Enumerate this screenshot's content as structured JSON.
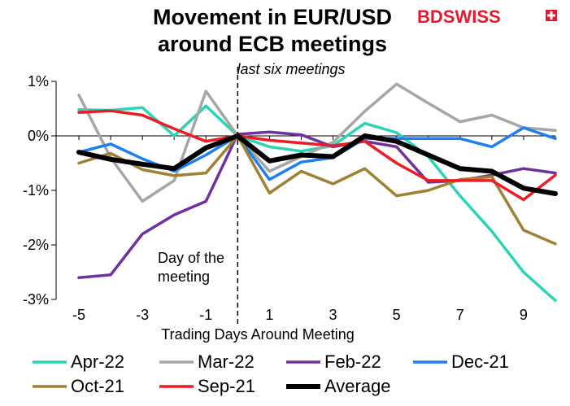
{
  "chart_data": {
    "type": "line",
    "title_line1": "Movement in EUR/USD",
    "title_line2": "around ECB meetings",
    "subtitle": "last six meetings",
    "xlabel": "Trading Days Around Meeting",
    "ylabel": "",
    "annotation_line1": "Day of the",
    "annotation_line2": "meeting",
    "annotation_x": 0,
    "x": [
      -5,
      -4,
      -3,
      -2,
      -1,
      0,
      1,
      2,
      3,
      4,
      5,
      6,
      7,
      8,
      9,
      10
    ],
    "xticks": [
      -5,
      -3,
      -1,
      1,
      3,
      5,
      7,
      9
    ],
    "xlim": [
      -5,
      10
    ],
    "ylim": [
      -3,
      1
    ],
    "yticks": [
      1,
      0,
      -1,
      -2,
      -3
    ],
    "ytick_labels": [
      "1%",
      "0%",
      "-1%",
      "-2%",
      "-3%"
    ],
    "grid": false,
    "legend_position": "bottom",
    "series": [
      {
        "name": "Apr-22",
        "color": "#2ad4b4",
        "width": 3.5,
        "values": [
          0.48,
          0.47,
          0.52,
          0.0,
          0.55,
          0.0,
          -0.2,
          -0.28,
          -0.18,
          0.23,
          0.06,
          -0.38,
          -1.1,
          -1.75,
          -2.5,
          -3.02
        ]
      },
      {
        "name": "Mar-22",
        "color": "#a6a6a6",
        "width": 3.5,
        "values": [
          0.75,
          -0.4,
          -1.2,
          -0.82,
          0.82,
          0.0,
          -0.65,
          -0.38,
          -0.12,
          0.45,
          0.95,
          0.6,
          0.26,
          0.38,
          0.15,
          0.1
        ]
      },
      {
        "name": "Feb-22",
        "color": "#7030a0",
        "width": 3.5,
        "values": [
          -2.6,
          -2.55,
          -1.8,
          -1.45,
          -1.2,
          0.03,
          0.07,
          0.02,
          -0.2,
          -0.1,
          -0.2,
          -0.85,
          -0.82,
          -0.72,
          -0.6,
          -0.68
        ]
      },
      {
        "name": "Dec-21",
        "color": "#1f7fef",
        "width": 3.5,
        "values": [
          -0.3,
          -0.15,
          -0.42,
          -0.65,
          -0.35,
          0.0,
          -0.8,
          -0.48,
          -0.4,
          -0.05,
          -0.05,
          -0.05,
          -0.05,
          -0.2,
          0.15,
          -0.05
        ]
      },
      {
        "name": "Oct-21",
        "color": "#9e8133",
        "width": 3.5,
        "values": [
          -0.5,
          -0.32,
          -0.62,
          -0.73,
          -0.68,
          0.0,
          -1.05,
          -0.65,
          -0.88,
          -0.6,
          -1.1,
          -1.0,
          -0.8,
          -0.75,
          -1.73,
          -1.98
        ]
      },
      {
        "name": "Sep-21",
        "color": "#ed1c24",
        "width": 3.5,
        "values": [
          0.43,
          0.46,
          0.38,
          0.13,
          -0.1,
          0.0,
          -0.08,
          -0.13,
          -0.18,
          -0.1,
          -0.5,
          -0.82,
          -0.82,
          -0.82,
          -1.17,
          -0.72
        ]
      },
      {
        "name": "Average",
        "color": "#000000",
        "width": 6,
        "values": [
          -0.3,
          -0.43,
          -0.52,
          -0.6,
          -0.22,
          0.0,
          -0.46,
          -0.35,
          -0.38,
          0.0,
          -0.1,
          -0.35,
          -0.6,
          -0.65,
          -0.96,
          -1.06
        ]
      }
    ]
  },
  "logo": {
    "text": "BDSWISS",
    "color": "#e8182c"
  }
}
